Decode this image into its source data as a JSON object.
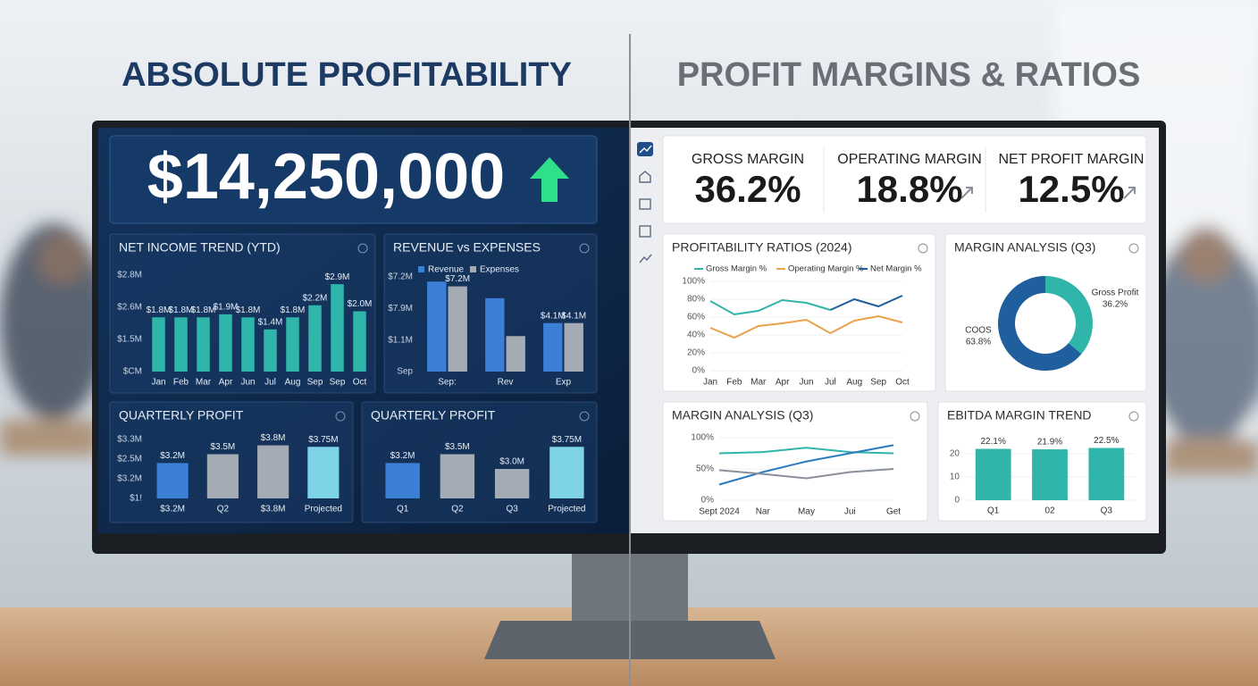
{
  "left": {
    "title": "ABSOLUTE PROFITABILITY",
    "kpi": "$14,250,000",
    "net_income": {
      "type": "bar",
      "title": "NET INCOME TREND (YTD)",
      "color": "#2fb5a9",
      "ylim": [
        0,
        3.2
      ],
      "ytick_labels": [
        "$2.8M",
        "$2.6M",
        "$1.5M",
        "$CM"
      ],
      "categories": [
        "Jan",
        "Feb",
        "Mar",
        "Apr",
        "Jun",
        "Jul",
        "Aug",
        "Sep",
        "Sep",
        "Oct"
      ],
      "values": [
        1.8,
        1.8,
        1.8,
        1.9,
        1.8,
        1.4,
        1.8,
        2.2,
        2.9,
        2.0
      ],
      "value_labels": [
        "$1.8M",
        "$1.8M",
        "$1.8M",
        "$1.9M",
        "$1.8M",
        "$1.4M",
        "$1.8M",
        "$2.2M",
        "$2.9M",
        "$2.0M"
      ]
    },
    "revenue_expenses": {
      "type": "bar",
      "title": "REVENUE vs EXPENSES",
      "ylim": [
        0,
        8
      ],
      "ytick_labels": [
        "$7.2M",
        "$7.9M",
        "$1.1M",
        "Sep"
      ],
      "categories": [
        "Sep:",
        "Rev",
        "Exp"
      ],
      "series": [
        {
          "name": "Revenue",
          "color": "#3b7fd6",
          "values": [
            7.6,
            6.2,
            4.1
          ],
          "value_labels": [
            null,
            null,
            "$4.1M"
          ]
        },
        {
          "name": "Expenses",
          "color": "#a3abb5",
          "values": [
            7.2,
            3.0,
            4.1
          ],
          "value_labels": [
            "$7.2M",
            null,
            "$4.1M"
          ]
        }
      ]
    },
    "quarterly_a": {
      "type": "bar",
      "title": "QUARTERLY PROFIT",
      "ylim": [
        2,
        4
      ],
      "ytick_labels": [
        "$3.3M",
        "$2.5M",
        "$3.2M",
        "$1!"
      ],
      "categories": [
        "$3.2M",
        "Q2",
        "$3.8M",
        "Projected"
      ],
      "colors": [
        "#3b7fd6",
        "#a3abb5",
        "#a3abb5",
        "#7fd3e6"
      ],
      "values": [
        3.2,
        3.5,
        3.8,
        3.75
      ],
      "value_labels": [
        "$3.2M",
        "$3.5M",
        "$3.8M",
        "$3.75M"
      ]
    },
    "quarterly_b": {
      "type": "bar",
      "title": "QUARTERLY PROFIT",
      "ylim": [
        2,
        4
      ],
      "categories": [
        "Q1",
        "Q2",
        "Q3",
        "Projected"
      ],
      "colors": [
        "#3b7fd6",
        "#a3abb5",
        "#a3abb5",
        "#7fd3e6"
      ],
      "values": [
        3.2,
        3.5,
        3.0,
        3.75
      ],
      "value_labels": [
        "$3.2M",
        "$3.5M",
        "$3.0M",
        "$3.75M"
      ]
    }
  },
  "right": {
    "title": "PROFIT MARGINS & RATIOS",
    "kpis": [
      {
        "label": "GROSS MARGIN",
        "value": "36.2%"
      },
      {
        "label": "OPERATING MARGIN",
        "value": "18.8%"
      },
      {
        "label": "NET PROFIT MARGIN",
        "value": "12.5%"
      }
    ],
    "ratios": {
      "type": "line",
      "title": "PROFITABILITY RATIOS (2024)",
      "ylim": [
        0,
        100
      ],
      "yticks": [
        {
          "value": 0,
          "label": "0%"
        },
        {
          "value": 20,
          "label": "20%"
        },
        {
          "value": 40,
          "label": "40%"
        },
        {
          "value": 60,
          "label": "60%"
        },
        {
          "value": 80,
          "label": "80%"
        },
        {
          "value": 100,
          "label": "100%"
        }
      ],
      "categories": [
        "Jan",
        "Feb",
        "Mar",
        "Apr",
        "Jun",
        "Jul",
        "Aug",
        "Sep",
        "Oct"
      ],
      "series": [
        {
          "name": "Gross Margin %",
          "color": "#2fb5a9",
          "values": [
            78,
            63,
            67,
            79,
            76,
            68,
            null,
            null,
            null
          ]
        },
        {
          "name": "Operating Margin %",
          "color": "#e8a24a",
          "values": [
            48,
            37,
            50,
            53,
            57,
            42,
            56,
            61,
            54
          ]
        },
        {
          "name": "Net Margin %",
          "color": "#1f5f9e",
          "values": [
            null,
            null,
            null,
            null,
            null,
            68,
            80,
            72,
            84
          ]
        }
      ]
    },
    "donut": {
      "type": "pie",
      "title": "MARGIN ANALYSIS (Q3)",
      "categories": [
        "Gross Profit",
        "COOS"
      ],
      "values": [
        36.2,
        63.8
      ],
      "value_labels": [
        "36.2%",
        "63.8%"
      ],
      "colors": [
        "#2fb5a9",
        "#1f5f9e"
      ]
    },
    "margin_lines": {
      "type": "line",
      "title": "MARGIN ANALYSIS (Q3)",
      "ylim": [
        0,
        100
      ],
      "yticks": [
        {
          "value": 0,
          "label": "0%"
        },
        {
          "value": 50,
          "label": "50%"
        },
        {
          "value": 100,
          "label": "100%"
        }
      ],
      "categories": [
        "Sept 2024",
        "Nar",
        "May",
        "Jui",
        "Get"
      ],
      "series": [
        {
          "color": "#2fb5a9",
          "values": [
            75,
            77,
            84,
            77,
            75
          ]
        },
        {
          "color": "#2a7bbf",
          "values": [
            25,
            45,
            62,
            75,
            88
          ]
        },
        {
          "color": "#8a9099",
          "values": [
            48,
            42,
            35,
            45,
            50
          ]
        }
      ]
    },
    "ebitda": {
      "type": "bar",
      "title": "EBITDA MARGIN TREND",
      "color": "#2fb5a9",
      "ylim": [
        0,
        25
      ],
      "yticks": [
        0,
        10,
        20
      ],
      "categories": [
        "Q1",
        "02",
        "Q3"
      ],
      "values": [
        22.1,
        21.9,
        22.5
      ],
      "value_labels": [
        "22.1%",
        "21.9%",
        "22.5%"
      ]
    }
  }
}
